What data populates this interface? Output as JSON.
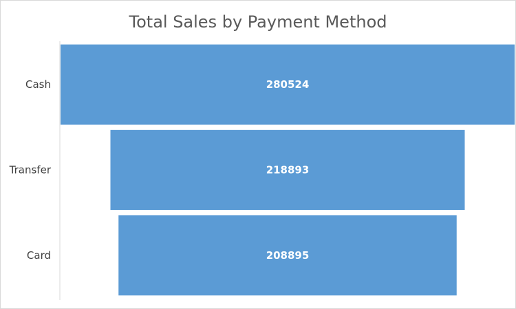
{
  "chart_data": {
    "type": "bar",
    "subtype": "funnel",
    "title": "Total Sales by Payment Method",
    "categories": [
      "Cash",
      "Transfer",
      "Card"
    ],
    "values": [
      280524,
      218893,
      208895
    ],
    "data_labels": [
      "280524",
      "218893",
      "208895"
    ],
    "xlabel": "",
    "ylabel": "",
    "grid": false,
    "legend": "none",
    "bar_color": "#5b9bd5"
  }
}
